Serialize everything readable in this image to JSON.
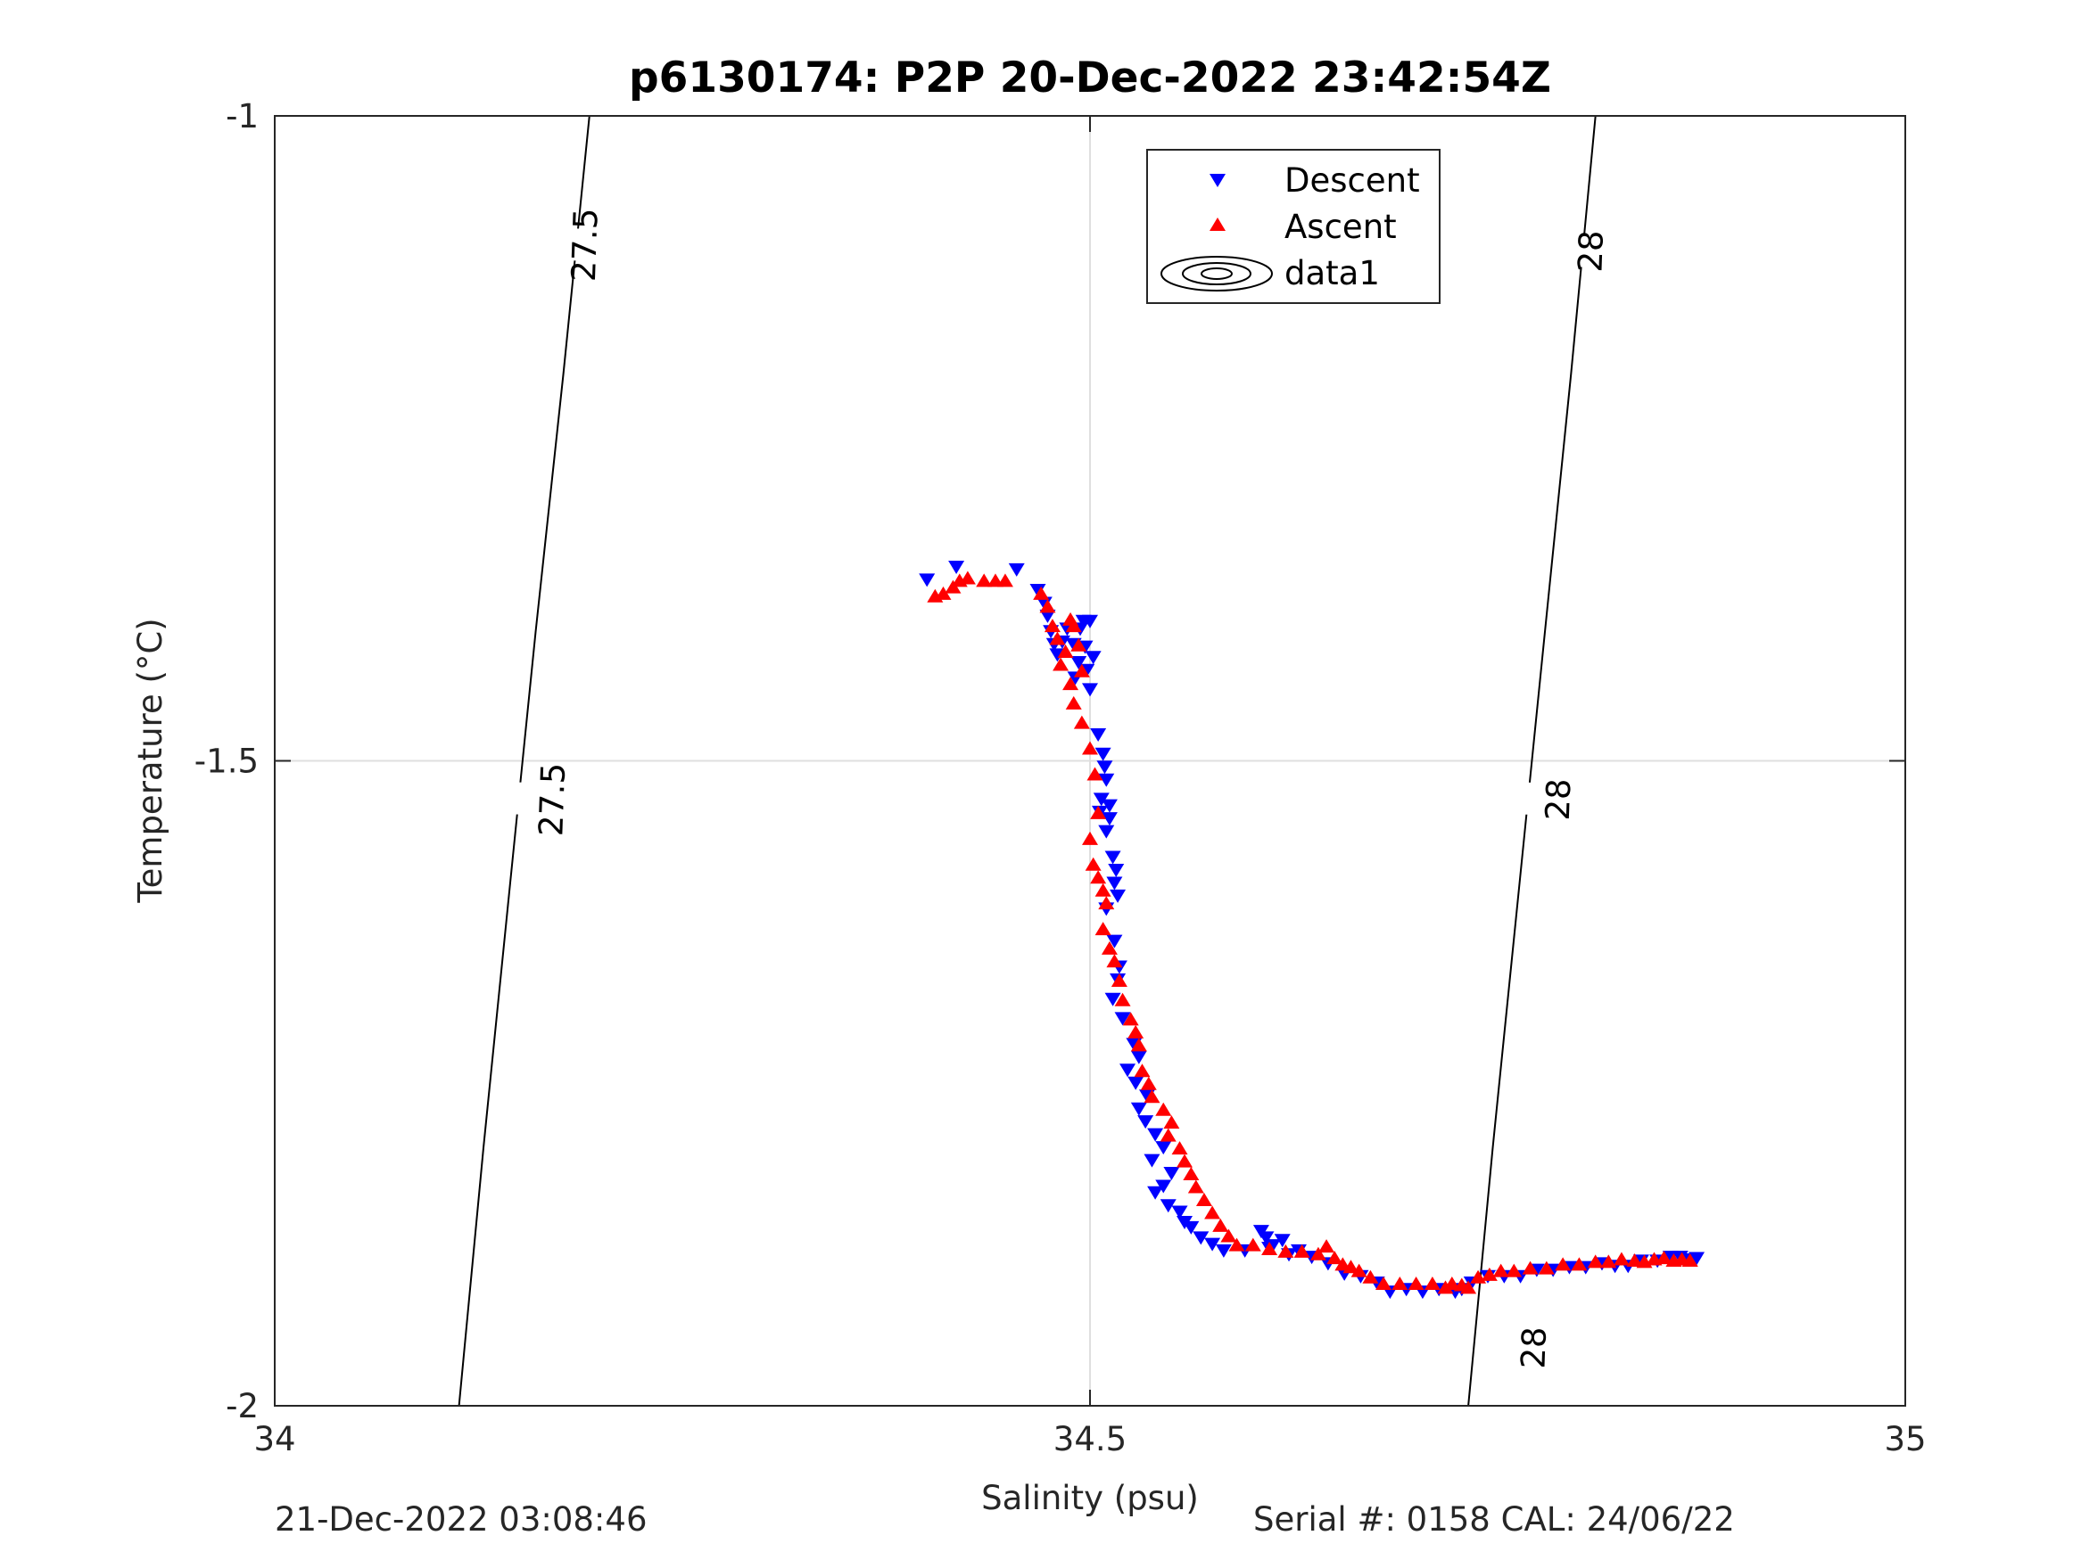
{
  "chart_data": {
    "type": "scatter",
    "title": "p6130174: P2P 20-Dec-2022 23:42:54Z",
    "xlabel": "Salinity (psu)",
    "ylabel": "Temperature (°C)",
    "xlim": [
      34,
      35
    ],
    "ylim": [
      -2,
      -1
    ],
    "xticks": [
      34,
      34.5,
      35
    ],
    "xtick_labels": [
      "34",
      "34.5",
      "35"
    ],
    "yticks": [
      -2,
      -1.5,
      -1
    ],
    "ytick_labels": [
      "-2",
      "-1.5",
      "-1"
    ],
    "grid": true,
    "legend": {
      "placement": "top-center",
      "entries": [
        "Descent",
        "Ascent",
        "data1"
      ]
    },
    "contours": [
      {
        "label": "27.5",
        "points": [
          [
            34.193,
            -1.0
          ],
          [
            34.177,
            -1.2
          ],
          [
            34.16,
            -1.4
          ],
          [
            34.144,
            -1.6
          ],
          [
            34.128,
            -1.8
          ],
          [
            34.113,
            -2.0
          ]
        ]
      },
      {
        "label": "28",
        "points": [
          [
            34.81,
            -1.0
          ],
          [
            34.795,
            -1.2
          ],
          [
            34.779,
            -1.4
          ],
          [
            34.763,
            -1.6
          ],
          [
            34.747,
            -1.8
          ],
          [
            34.732,
            -2.0
          ]
        ]
      }
    ],
    "contour_labels": [
      {
        "text": "27.5",
        "x": 34.19,
        "y": -1.1
      },
      {
        "text": "27.5",
        "x": 34.17,
        "y": -1.53
      },
      {
        "text": "28",
        "x": 34.807,
        "y": -1.105
      },
      {
        "text": "28",
        "x": 34.787,
        "y": -1.53
      },
      {
        "text": "28",
        "x": 34.772,
        "y": -1.955
      }
    ],
    "series": [
      {
        "name": "Descent",
        "marker": "triangle-down",
        "color": "#0000ff",
        "points": [
          [
            34.4,
            -1.36
          ],
          [
            34.418,
            -1.35
          ],
          [
            34.455,
            -1.352
          ],
          [
            34.468,
            -1.368
          ],
          [
            34.472,
            -1.378
          ],
          [
            34.474,
            -1.388
          ],
          [
            34.476,
            -1.4
          ],
          [
            34.478,
            -1.41
          ],
          [
            34.48,
            -1.418
          ],
          [
            34.483,
            -1.408
          ],
          [
            34.486,
            -1.398
          ],
          [
            34.49,
            -1.41
          ],
          [
            34.494,
            -1.398
          ],
          [
            34.496,
            -1.392
          ],
          [
            34.5,
            -1.392
          ],
          [
            34.497,
            -1.412
          ],
          [
            34.493,
            -1.424
          ],
          [
            34.491,
            -1.436
          ],
          [
            34.498,
            -1.43
          ],
          [
            34.502,
            -1.42
          ],
          [
            34.5,
            -1.445
          ],
          [
            34.505,
            -1.48
          ],
          [
            34.508,
            -1.495
          ],
          [
            34.509,
            -1.505
          ],
          [
            34.51,
            -1.515
          ],
          [
            34.507,
            -1.53
          ],
          [
            34.506,
            -1.54
          ],
          [
            34.512,
            -1.535
          ],
          [
            34.512,
            -1.545
          ],
          [
            34.51,
            -1.555
          ],
          [
            34.514,
            -1.575
          ],
          [
            34.516,
            -1.585
          ],
          [
            34.515,
            -1.595
          ],
          [
            34.517,
            -1.605
          ],
          [
            34.51,
            -1.615
          ],
          [
            34.515,
            -1.64
          ],
          [
            34.518,
            -1.66
          ],
          [
            34.517,
            -1.67
          ],
          [
            34.514,
            -1.685
          ],
          [
            34.52,
            -1.7
          ],
          [
            34.527,
            -1.72
          ],
          [
            34.53,
            -1.73
          ],
          [
            34.523,
            -1.74
          ],
          [
            34.528,
            -1.75
          ],
          [
            34.535,
            -1.76
          ],
          [
            34.53,
            -1.77
          ],
          [
            34.534,
            -1.78
          ],
          [
            34.54,
            -1.79
          ],
          [
            34.545,
            -1.8
          ],
          [
            34.538,
            -1.81
          ],
          [
            34.55,
            -1.82
          ],
          [
            34.545,
            -1.83
          ],
          [
            34.54,
            -1.835
          ],
          [
            34.548,
            -1.845
          ],
          [
            34.555,
            -1.85
          ],
          [
            34.558,
            -1.858
          ],
          [
            34.562,
            -1.862
          ],
          [
            34.568,
            -1.87
          ],
          [
            34.575,
            -1.875
          ],
          [
            34.582,
            -1.88
          ],
          [
            34.595,
            -1.88
          ],
          [
            34.61,
            -1.878
          ],
          [
            34.622,
            -1.883
          ],
          [
            34.605,
            -1.865
          ],
          [
            34.608,
            -1.87
          ],
          [
            34.612,
            -1.876
          ],
          [
            34.618,
            -1.872
          ],
          [
            34.628,
            -1.88
          ],
          [
            34.636,
            -1.885
          ],
          [
            34.646,
            -1.89
          ],
          [
            34.656,
            -1.898
          ],
          [
            34.666,
            -1.9
          ],
          [
            34.676,
            -1.905
          ],
          [
            34.684,
            -1.912
          ],
          [
            34.694,
            -1.91
          ],
          [
            34.704,
            -1.912
          ],
          [
            34.714,
            -1.91
          ],
          [
            34.724,
            -1.912
          ],
          [
            34.728,
            -1.91
          ],
          [
            34.734,
            -1.905
          ],
          [
            34.744,
            -1.9
          ],
          [
            34.754,
            -1.9
          ],
          [
            34.764,
            -1.9
          ],
          [
            34.774,
            -1.895
          ],
          [
            34.784,
            -1.895
          ],
          [
            34.794,
            -1.893
          ],
          [
            34.804,
            -1.893
          ],
          [
            34.814,
            -1.89
          ],
          [
            34.822,
            -1.892
          ],
          [
            34.83,
            -1.892
          ],
          [
            34.838,
            -1.888
          ],
          [
            34.848,
            -1.888
          ],
          [
            34.856,
            -1.885
          ],
          [
            34.862,
            -1.885
          ],
          [
            34.868,
            -1.887
          ],
          [
            34.872,
            -1.886
          ]
        ]
      },
      {
        "name": "Ascent",
        "marker": "triangle-up",
        "color": "#ff0000",
        "points": [
          [
            34.405,
            -1.372
          ],
          [
            34.41,
            -1.37
          ],
          [
            34.416,
            -1.365
          ],
          [
            34.42,
            -1.36
          ],
          [
            34.425,
            -1.358
          ],
          [
            34.435,
            -1.36
          ],
          [
            34.442,
            -1.36
          ],
          [
            34.448,
            -1.36
          ],
          [
            34.47,
            -1.37
          ],
          [
            34.474,
            -1.38
          ],
          [
            34.477,
            -1.395
          ],
          [
            34.48,
            -1.405
          ],
          [
            34.482,
            -1.425
          ],
          [
            34.485,
            -1.415
          ],
          [
            34.488,
            -1.39
          ],
          [
            34.49,
            -1.395
          ],
          [
            34.493,
            -1.41
          ],
          [
            34.495,
            -1.43
          ],
          [
            34.488,
            -1.44
          ],
          [
            34.49,
            -1.455
          ],
          [
            34.495,
            -1.47
          ],
          [
            34.5,
            -1.49
          ],
          [
            34.503,
            -1.51
          ],
          [
            34.505,
            -1.54
          ],
          [
            34.5,
            -1.56
          ],
          [
            34.502,
            -1.58
          ],
          [
            34.505,
            -1.59
          ],
          [
            34.508,
            -1.6
          ],
          [
            34.51,
            -1.61
          ],
          [
            34.508,
            -1.63
          ],
          [
            34.512,
            -1.645
          ],
          [
            34.515,
            -1.655
          ],
          [
            34.518,
            -1.67
          ],
          [
            34.52,
            -1.685
          ],
          [
            34.525,
            -1.7
          ],
          [
            34.528,
            -1.71
          ],
          [
            34.53,
            -1.72
          ],
          [
            34.532,
            -1.74
          ],
          [
            34.536,
            -1.75
          ],
          [
            34.538,
            -1.76
          ],
          [
            34.545,
            -1.77
          ],
          [
            34.55,
            -1.78
          ],
          [
            34.548,
            -1.79
          ],
          [
            34.555,
            -1.8
          ],
          [
            34.558,
            -1.81
          ],
          [
            34.562,
            -1.82
          ],
          [
            34.565,
            -1.83
          ],
          [
            34.57,
            -1.84
          ],
          [
            34.575,
            -1.85
          ],
          [
            34.58,
            -1.86
          ],
          [
            34.585,
            -1.868
          ],
          [
            34.59,
            -1.875
          ],
          [
            34.6,
            -1.875
          ],
          [
            34.61,
            -1.878
          ],
          [
            34.62,
            -1.88
          ],
          [
            34.63,
            -1.88
          ],
          [
            34.64,
            -1.882
          ],
          [
            34.645,
            -1.876
          ],
          [
            34.65,
            -1.885
          ],
          [
            34.655,
            -1.89
          ],
          [
            34.66,
            -1.892
          ],
          [
            34.665,
            -1.895
          ],
          [
            34.672,
            -1.9
          ],
          [
            34.68,
            -1.905
          ],
          [
            34.69,
            -1.905
          ],
          [
            34.7,
            -1.905
          ],
          [
            34.71,
            -1.905
          ],
          [
            34.718,
            -1.908
          ],
          [
            34.722,
            -1.905
          ],
          [
            34.728,
            -1.906
          ],
          [
            34.732,
            -1.908
          ],
          [
            34.738,
            -1.9
          ],
          [
            34.745,
            -1.898
          ],
          [
            34.752,
            -1.895
          ],
          [
            34.76,
            -1.895
          ],
          [
            34.77,
            -1.893
          ],
          [
            34.78,
            -1.893
          ],
          [
            34.79,
            -1.89
          ],
          [
            34.8,
            -1.89
          ],
          [
            34.81,
            -1.888
          ],
          [
            34.818,
            -1.888
          ],
          [
            34.826,
            -1.886
          ],
          [
            34.834,
            -1.887
          ],
          [
            34.84,
            -1.888
          ],
          [
            34.846,
            -1.886
          ],
          [
            34.852,
            -1.885
          ],
          [
            34.858,
            -1.887
          ],
          [
            34.863,
            -1.886
          ],
          [
            34.868,
            -1.887
          ]
        ]
      }
    ]
  },
  "footer": {
    "timestamp": "21-Dec-2022 03:08:46",
    "serial": "Serial #: 0158  CAL: 24/06/22"
  }
}
